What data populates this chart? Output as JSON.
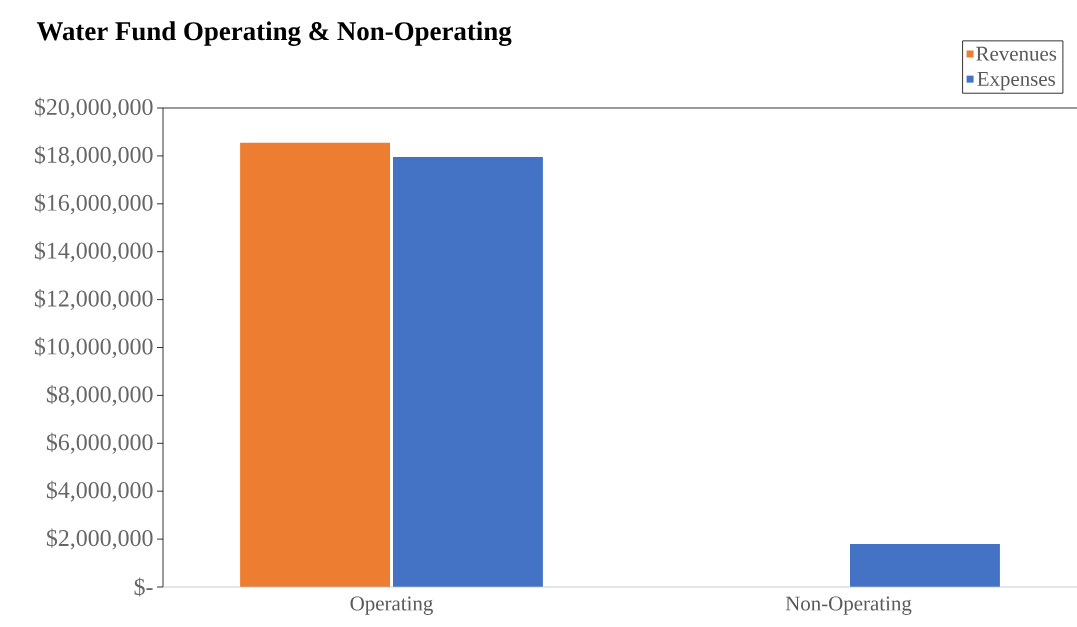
{
  "chart_data": {
    "type": "bar",
    "title": "Water Fund  Operating & Non-Operating",
    "categories": [
      "Operating",
      "Non-Operating"
    ],
    "series": [
      {
        "name": "Revenues",
        "color": "#ed7d31",
        "values": [
          18550000,
          0
        ]
      },
      {
        "name": "Expenses",
        "color": "#4472c4",
        "values": [
          17950000,
          1800000
        ]
      }
    ],
    "ylim": [
      0,
      20000000
    ],
    "yticks": [
      {
        "value": 0,
        "label": "$-"
      },
      {
        "value": 2000000,
        "label": "$2,000,000"
      },
      {
        "value": 4000000,
        "label": "$4,000,000"
      },
      {
        "value": 6000000,
        "label": "$6,000,000"
      },
      {
        "value": 8000000,
        "label": "$8,000,000"
      },
      {
        "value": 10000000,
        "label": "$10,000,000"
      },
      {
        "value": 12000000,
        "label": "$12,000,000"
      },
      {
        "value": 14000000,
        "label": "$14,000,000"
      },
      {
        "value": 16000000,
        "label": "$16,000,000"
      },
      {
        "value": 18000000,
        "label": "$18,000,000"
      },
      {
        "value": 20000000,
        "label": "$20,000,000"
      }
    ],
    "legend": "top right",
    "grid": false
  }
}
